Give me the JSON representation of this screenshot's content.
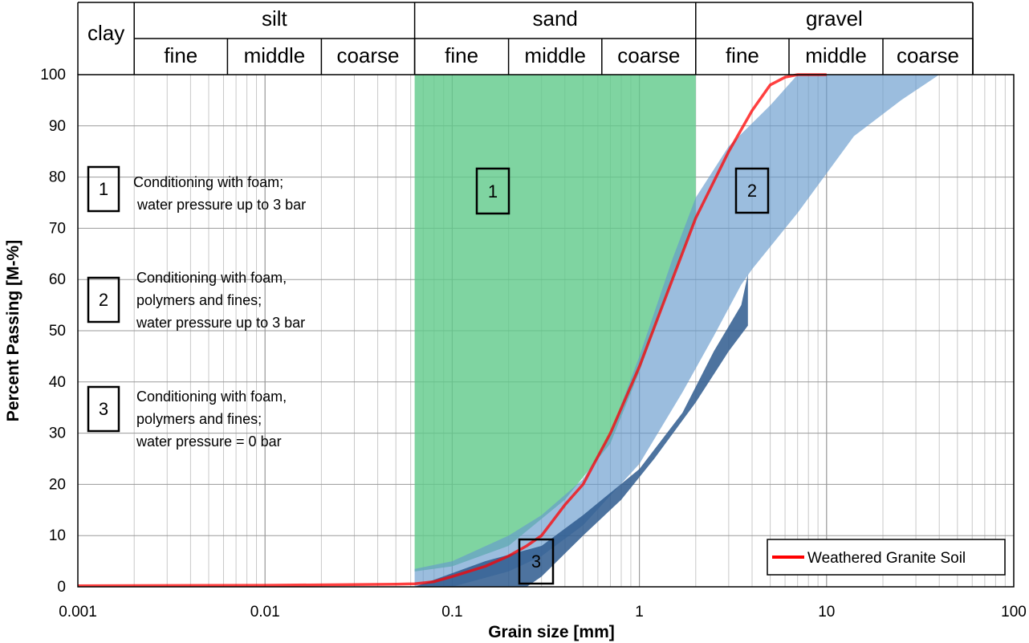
{
  "chart_data": {
    "type": "area",
    "xlabel": "Grain size [mm]",
    "ylabel": "Percent Passing [M-%]",
    "xscale": "log",
    "xlim": [
      0.001,
      100
    ],
    "ylim": [
      0,
      100
    ],
    "grid": true,
    "x_tick_labels": [
      "0.001",
      "0.01",
      "0.1",
      "1",
      "10",
      "100"
    ],
    "y_tick_labels": [
      "0",
      "10",
      "20",
      "30",
      "40",
      "50",
      "60",
      "70",
      "80",
      "90",
      "100"
    ],
    "header": {
      "groups": [
        {
          "label": "clay",
          "from": 0.001,
          "to": 0.002,
          "subs": []
        },
        {
          "label": "silt",
          "from": 0.002,
          "to": 0.063,
          "subs": [
            {
              "label": "fine",
              "from": 0.002,
              "to": 0.0063
            },
            {
              "label": "middle",
              "from": 0.0063,
              "to": 0.02
            },
            {
              "label": "coarse",
              "from": 0.02,
              "to": 0.063
            }
          ]
        },
        {
          "label": "sand",
          "from": 0.063,
          "to": 2,
          "subs": [
            {
              "label": "fine",
              "from": 0.063,
              "to": 0.2
            },
            {
              "label": "middle",
              "from": 0.2,
              "to": 0.63
            },
            {
              "label": "coarse",
              "from": 0.63,
              "to": 2
            }
          ]
        },
        {
          "label": "gravel",
          "from": 2,
          "to": 63,
          "subs": [
            {
              "label": "fine",
              "from": 2,
              "to": 6.3
            },
            {
              "label": "middle",
              "from": 6.3,
              "to": 20
            },
            {
              "label": "coarse",
              "from": 20,
              "to": 63
            }
          ]
        }
      ]
    },
    "zones": [
      {
        "number": "1",
        "color": "#5fc98a",
        "opacity": 0.8,
        "upper": [
          [
            0.063,
            100
          ],
          [
            2,
            100
          ]
        ],
        "lower": [
          [
            0.063,
            3
          ],
          [
            0.1,
            4
          ],
          [
            0.2,
            8
          ],
          [
            0.4,
            17
          ],
          [
            0.7,
            28
          ],
          [
            1,
            42
          ],
          [
            1.5,
            60
          ],
          [
            2,
            72
          ]
        ]
      },
      {
        "number": "2",
        "color": "#6699cc",
        "opacity": 0.65,
        "upper": [
          [
            0.063,
            3.5
          ],
          [
            0.1,
            5
          ],
          [
            0.2,
            10
          ],
          [
            0.3,
            14
          ],
          [
            0.5,
            21
          ],
          [
            0.7,
            30
          ],
          [
            1,
            45
          ],
          [
            1.5,
            64
          ],
          [
            2,
            76
          ],
          [
            3,
            86
          ],
          [
            5,
            94
          ],
          [
            7,
            100
          ],
          [
            40,
            100
          ]
        ],
        "lower": [
          [
            0.063,
            0
          ],
          [
            0.1,
            0
          ],
          [
            0.2,
            3
          ],
          [
            0.3,
            6
          ],
          [
            0.5,
            12
          ],
          [
            1,
            24
          ],
          [
            1.7,
            38
          ],
          [
            2.5,
            49
          ],
          [
            3.5,
            59
          ],
          [
            4,
            62
          ],
          [
            7,
            73
          ],
          [
            14,
            88
          ],
          [
            25,
            95
          ],
          [
            40,
            100
          ]
        ]
      },
      {
        "number": "3",
        "color": "#2e5a8e",
        "opacity": 0.85,
        "upper": [
          [
            0.063,
            0
          ],
          [
            0.15,
            5
          ],
          [
            0.3,
            8
          ],
          [
            0.5,
            14
          ],
          [
            1,
            23
          ],
          [
            1.7,
            34
          ],
          [
            2.5,
            46
          ],
          [
            3.5,
            55
          ],
          [
            3.8,
            61
          ]
        ],
        "lower": [
          [
            0.063,
            0
          ],
          [
            0.15,
            0
          ],
          [
            0.25,
            0
          ],
          [
            0.3,
            2
          ],
          [
            0.5,
            10
          ],
          [
            0.8,
            17
          ],
          [
            1.2,
            25
          ],
          [
            2,
            36
          ],
          [
            3,
            46
          ],
          [
            3.8,
            51
          ]
        ]
      }
    ],
    "series": [
      {
        "name": "Weathered Granite Soil",
        "color": "#ff0000",
        "x": [
          0.001,
          0.01,
          0.05,
          0.063,
          0.08,
          0.1,
          0.15,
          0.2,
          0.25,
          0.3,
          0.4,
          0.5,
          0.7,
          1,
          1.5,
          2,
          3,
          4,
          5,
          6,
          7,
          10
        ],
        "values": [
          0.2,
          0.3,
          0.5,
          0.6,
          1,
          2,
          4,
          6,
          8,
          10,
          16,
          20,
          30,
          43,
          60,
          72,
          85,
          93,
          98,
          99.5,
          100,
          100
        ]
      }
    ],
    "legend": {
      "position": "bottom-right",
      "entries": [
        "Weathered Granite Soil"
      ]
    },
    "annotations": [
      {
        "number": "1",
        "lines": [
          "Conditioning with foam;",
          "water pressure up to 3 bar"
        ]
      },
      {
        "number": "2",
        "lines": [
          "Conditioning with foam,",
          "polymers and fines;",
          "water pressure up to 3 bar"
        ]
      },
      {
        "number": "3",
        "lines": [
          "Conditioning with foam,",
          "polymers and fines;",
          "water pressure = 0 bar"
        ]
      }
    ]
  }
}
